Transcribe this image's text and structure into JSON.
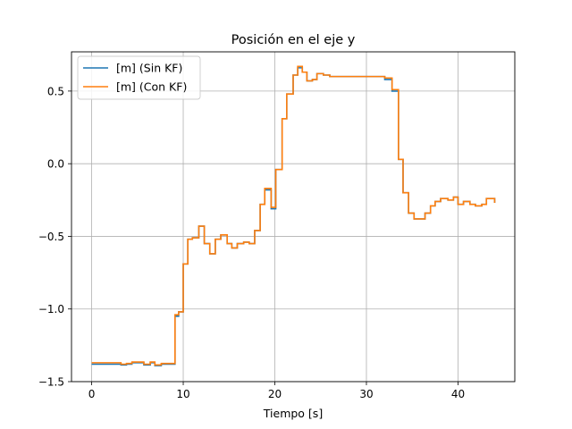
{
  "chart_data": {
    "type": "line",
    "title": "Posición en el eje y",
    "xlabel": "Tiempo [s]",
    "ylabel": "",
    "xlim": [
      -2.2,
      46.2
    ],
    "ylim": [
      -1.5,
      0.77
    ],
    "xticks": [
      0,
      10,
      20,
      30,
      40
    ],
    "xtick_labels": [
      "0",
      "10",
      "20",
      "30",
      "40"
    ],
    "yticks": [
      -1.5,
      -1.0,
      -0.5,
      0.0,
      0.5
    ],
    "ytick_labels": [
      "−1.5",
      "−1.0",
      "−0.5",
      "0.0",
      "0.5"
    ],
    "grid": true,
    "legend_position": "top-left",
    "step": true,
    "series": [
      {
        "name": "[m] (Sin KF)",
        "color": "#1f77b4",
        "x": [
          0,
          2.6,
          3.2,
          3.8,
          4.4,
          5.7,
          6.4,
          6.9,
          7.6,
          8.9,
          9.1,
          9.5,
          10.0,
          10.5,
          11.0,
          11.7,
          12.3,
          12.9,
          13.5,
          14.1,
          14.8,
          15.3,
          15.9,
          16.6,
          17.2,
          17.8,
          18.4,
          18.9,
          19.6,
          20.1,
          20.8,
          21.3,
          22.0,
          22.5,
          23.0,
          23.5,
          24.1,
          24.6,
          25.3,
          26.0,
          26.6,
          32.0,
          32.8,
          33.5,
          34.0,
          34.6,
          35.2,
          36.4,
          37.0,
          37.5,
          38.1,
          38.9,
          39.5,
          40.0,
          40.6,
          41.3,
          41.9,
          42.6,
          43.1,
          44.0
        ],
        "y": [
          -1.38,
          -1.38,
          -1.385,
          -1.38,
          -1.37,
          -1.385,
          -1.37,
          -1.39,
          -1.38,
          -1.38,
          -1.05,
          -1.02,
          -0.69,
          -0.52,
          -0.51,
          -0.43,
          -0.55,
          -0.62,
          -0.52,
          -0.49,
          -0.55,
          -0.58,
          -0.55,
          -0.54,
          -0.55,
          -0.46,
          -0.28,
          -0.18,
          -0.31,
          -0.04,
          0.31,
          0.48,
          0.61,
          0.66,
          0.63,
          0.57,
          0.58,
          0.62,
          0.61,
          0.6,
          0.6,
          0.58,
          0.5,
          0.03,
          -0.2,
          -0.34,
          -0.38,
          -0.34,
          -0.29,
          -0.26,
          -0.24,
          -0.25,
          -0.23,
          -0.28,
          -0.26,
          -0.28,
          -0.29,
          -0.28,
          -0.24,
          -0.27
        ]
      },
      {
        "name": "[m] (Con KF)",
        "color": "#ff7f0e",
        "x": [
          0,
          2.6,
          3.2,
          3.8,
          4.4,
          5.7,
          6.4,
          6.9,
          7.6,
          8.9,
          9.1,
          9.5,
          10.0,
          10.5,
          11.0,
          11.7,
          12.3,
          12.9,
          13.5,
          14.1,
          14.8,
          15.3,
          15.9,
          16.6,
          17.2,
          17.8,
          18.4,
          18.9,
          19.6,
          20.1,
          20.8,
          21.3,
          22.0,
          22.5,
          23.0,
          23.5,
          24.1,
          24.6,
          25.3,
          26.0,
          26.6,
          32.0,
          32.8,
          33.5,
          34.0,
          34.6,
          35.2,
          36.4,
          37.0,
          37.5,
          38.1,
          38.9,
          39.5,
          40.0,
          40.6,
          41.3,
          41.9,
          42.6,
          43.1,
          44.0
        ],
        "y": [
          -1.37,
          -1.37,
          -1.38,
          -1.375,
          -1.365,
          -1.38,
          -1.365,
          -1.385,
          -1.375,
          -1.375,
          -1.04,
          -1.02,
          -0.69,
          -0.52,
          -0.51,
          -0.43,
          -0.55,
          -0.62,
          -0.52,
          -0.49,
          -0.55,
          -0.58,
          -0.55,
          -0.54,
          -0.55,
          -0.46,
          -0.28,
          -0.17,
          -0.3,
          -0.04,
          0.31,
          0.48,
          0.61,
          0.67,
          0.63,
          0.57,
          0.58,
          0.62,
          0.61,
          0.6,
          0.6,
          0.59,
          0.51,
          0.03,
          -0.2,
          -0.34,
          -0.38,
          -0.34,
          -0.29,
          -0.26,
          -0.24,
          -0.25,
          -0.23,
          -0.28,
          -0.26,
          -0.28,
          -0.29,
          -0.28,
          -0.24,
          -0.27
        ]
      }
    ]
  }
}
